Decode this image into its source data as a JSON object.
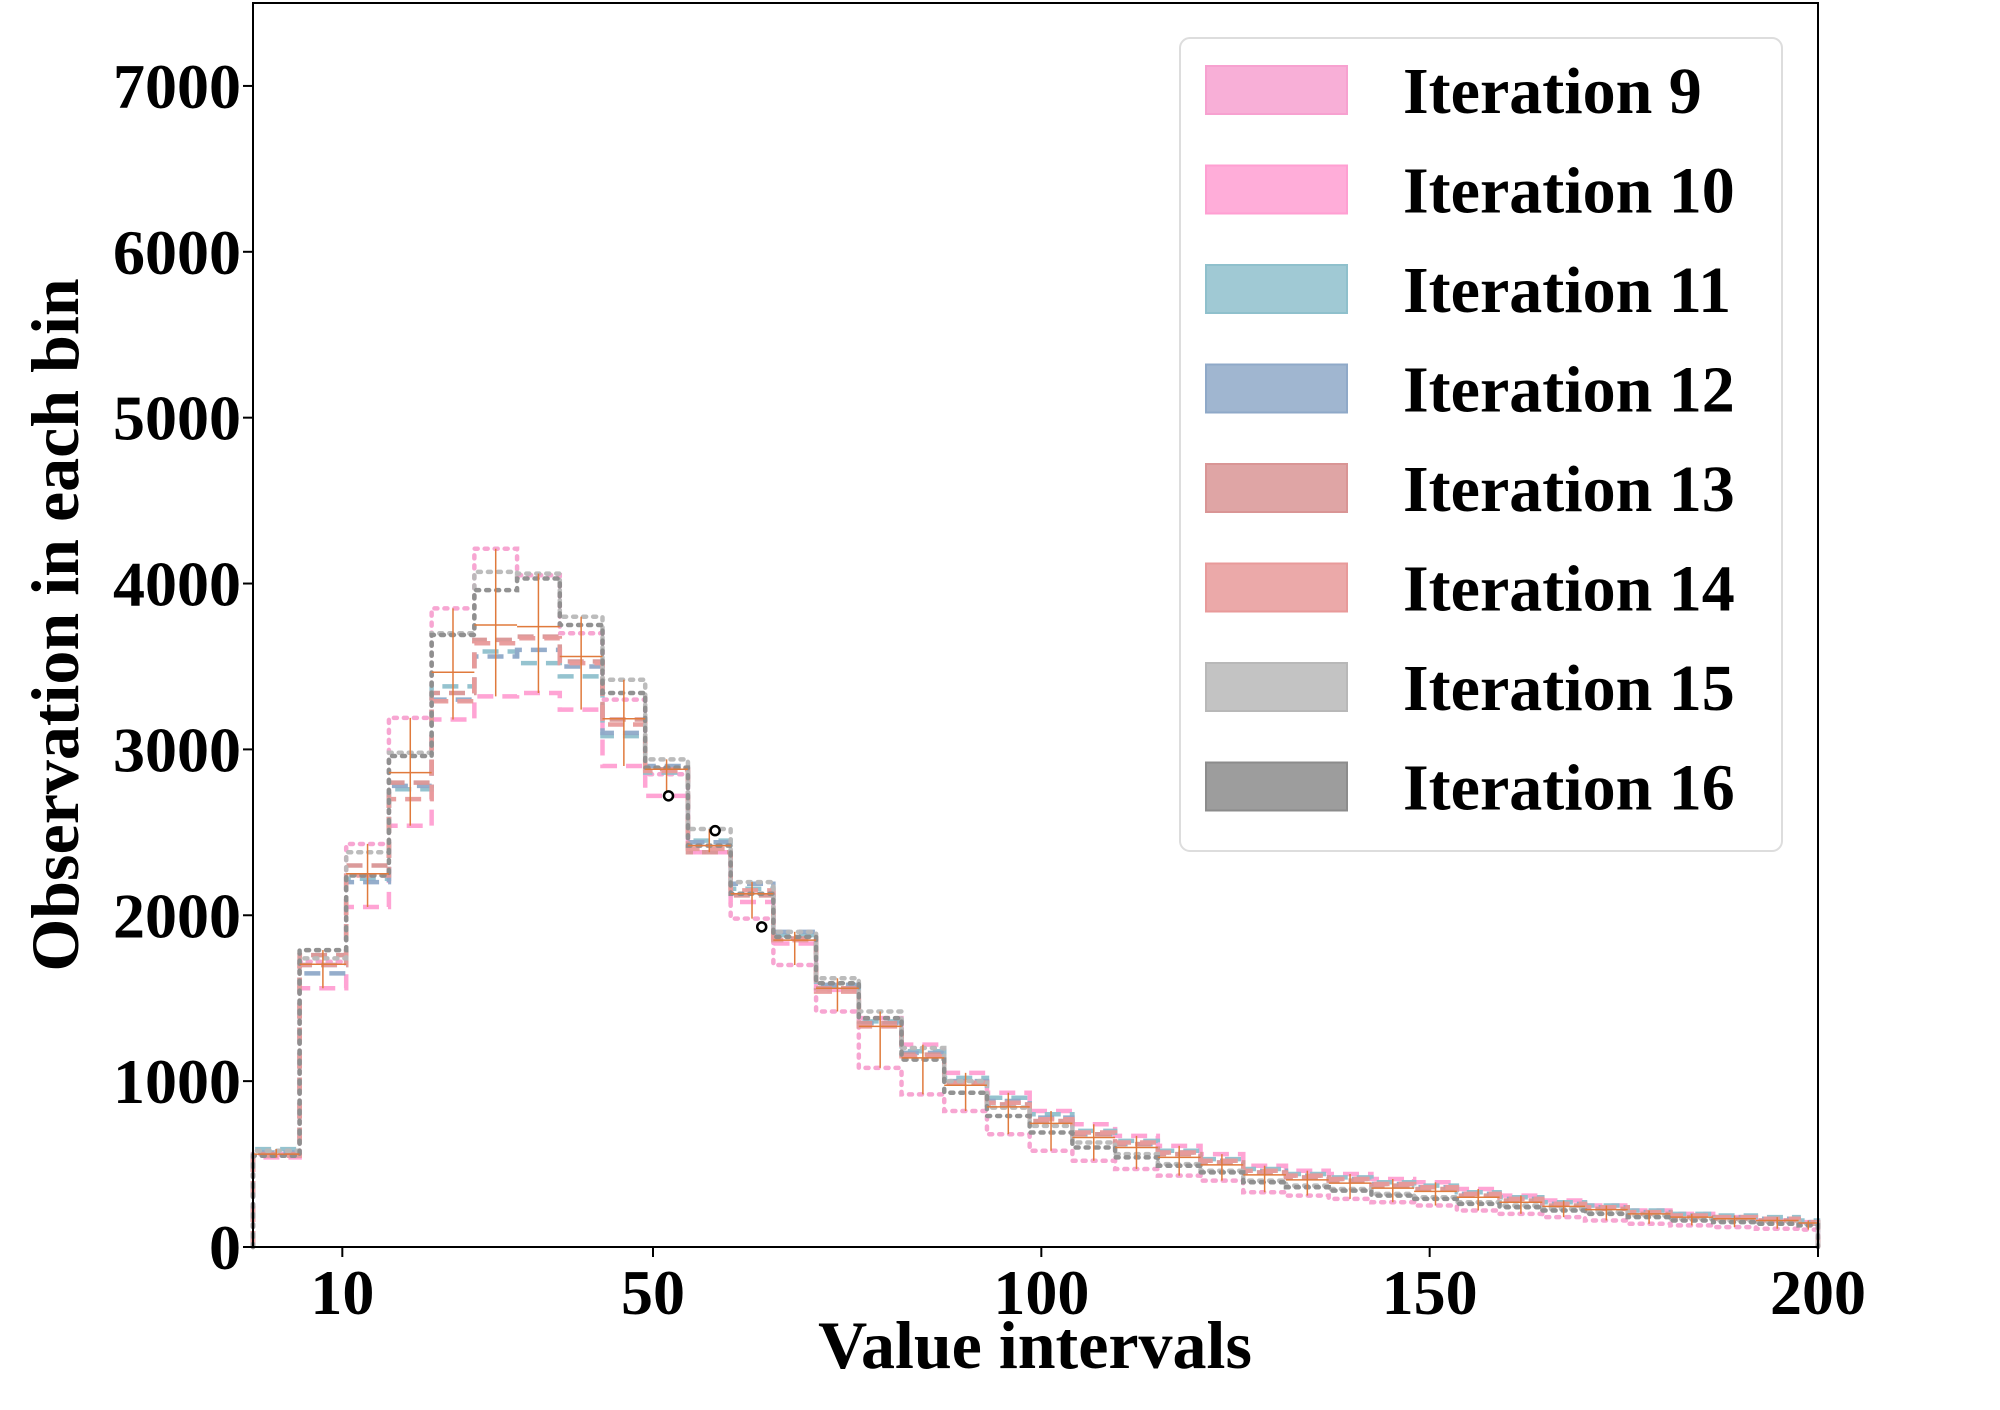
{
  "chart_data": {
    "type": "histogram-step",
    "title": "",
    "xlabel": "Value intervals",
    "ylabel": "Observation in each bin",
    "xlim": [
      -1.5,
      200
    ],
    "ylim": [
      0,
      7500
    ],
    "xticks": [
      10,
      50,
      100,
      150,
      200
    ],
    "yticks": [
      0,
      1000,
      2000,
      3000,
      4000,
      5000,
      6000,
      7000
    ],
    "legend_position": "top-right",
    "bin_edges": [
      -1.5,
      4.5,
      10.5,
      16.0,
      21.5,
      27.0,
      32.5,
      38.0,
      43.5,
      49.0,
      54.5,
      60.0,
      65.5,
      71.0,
      76.5,
      82.0,
      87.5,
      93.0,
      98.5,
      104.0,
      109.5,
      115.0,
      120.5,
      126.0,
      131.5,
      137.0,
      142.5,
      148.0,
      153.5,
      159.0,
      164.5,
      170.0,
      175.5,
      181.0,
      186.5,
      192.0,
      197.5,
      200.0
    ],
    "series": [
      {
        "name": "Iteration 9",
        "color": "#f7a1d0",
        "dash": "dotted",
        "values": [
          560,
          1720,
          2430,
          3190,
          3850,
          4210,
          4050,
          3700,
          3300,
          2850,
          2380,
          1980,
          1700,
          1420,
          1080,
          920,
          820,
          680,
          580,
          520,
          470,
          430,
          400,
          330,
          310,
          290,
          270,
          250,
          220,
          200,
          180,
          160,
          140,
          130,
          120,
          110,
          105
        ]
      },
      {
        "name": "Iteration 10",
        "color": "#ff9fd2",
        "dash": "dashed",
        "values": [
          540,
          1560,
          2050,
          2540,
          3180,
          3320,
          3340,
          3240,
          2900,
          2720,
          2380,
          2080,
          1830,
          1550,
          1380,
          1220,
          1050,
          930,
          820,
          740,
          670,
          610,
          560,
          490,
          460,
          440,
          410,
          390,
          350,
          310,
          280,
          250,
          220,
          200,
          180,
          160,
          150
        ]
      },
      {
        "name": "Iteration 11",
        "color": "#8fc0cc",
        "dash": "dashed",
        "values": [
          590,
          1700,
          2220,
          2760,
          3380,
          3590,
          3520,
          3440,
          3080,
          2860,
          2450,
          2160,
          1880,
          1570,
          1360,
          1180,
          1020,
          900,
          800,
          700,
          640,
          580,
          530,
          470,
          440,
          420,
          390,
          370,
          330,
          300,
          270,
          250,
          220,
          200,
          190,
          180,
          160
        ]
      },
      {
        "name": "Iteration 12",
        "color": "#8fa9c8",
        "dash": "dashed",
        "values": [
          570,
          1650,
          2200,
          2780,
          3300,
          3560,
          3600,
          3500,
          3100,
          2900,
          2440,
          2190,
          1900,
          1580,
          1350,
          1170,
          1000,
          880,
          780,
          680,
          620,
          570,
          520,
          460,
          430,
          410,
          380,
          360,
          320,
          290,
          260,
          240,
          210,
          190,
          180,
          170,
          150
        ]
      },
      {
        "name": "Iteration 13",
        "color": "#d99595",
        "dash": "dashed",
        "values": [
          560,
          1760,
          2300,
          2800,
          3340,
          3660,
          3680,
          3530,
          3180,
          2880,
          2380,
          2120,
          1860,
          1560,
          1350,
          1160,
          990,
          860,
          760,
          680,
          620,
          560,
          510,
          450,
          420,
          400,
          370,
          350,
          310,
          280,
          250,
          230,
          200,
          180,
          170,
          160,
          140
        ]
      },
      {
        "name": "Iteration 14",
        "color": "#e89a9a",
        "dash": "dashed",
        "values": [
          550,
          1700,
          2240,
          2700,
          3290,
          3640,
          3670,
          3520,
          3150,
          2870,
          2400,
          2150,
          1850,
          1540,
          1330,
          1150,
          990,
          870,
          770,
          690,
          630,
          570,
          520,
          460,
          430,
          410,
          380,
          360,
          320,
          290,
          260,
          240,
          210,
          190,
          180,
          170,
          150
        ]
      },
      {
        "name": "Iteration 15",
        "color": "#b8b8b8",
        "dash": "dotted",
        "values": [
          580,
          1740,
          2380,
          2980,
          3700,
          4070,
          4060,
          3800,
          3420,
          2940,
          2520,
          2200,
          1900,
          1620,
          1420,
          1200,
          1000,
          840,
          730,
          630,
          560,
          500,
          460,
          400,
          370,
          350,
          320,
          300,
          270,
          250,
          230,
          210,
          190,
          170,
          160,
          150,
          140
        ]
      },
      {
        "name": "Iteration 16",
        "color": "#8c8c8c",
        "dash": "dotted",
        "values": [
          550,
          1790,
          2240,
          2960,
          3690,
          3960,
          4030,
          3750,
          3340,
          2890,
          2420,
          2130,
          1870,
          1590,
          1380,
          1130,
          930,
          790,
          690,
          600,
          540,
          490,
          450,
          390,
          360,
          340,
          310,
          290,
          260,
          240,
          220,
          200,
          180,
          160,
          150,
          140,
          130
        ]
      }
    ],
    "mean_line": {
      "color": "#e07a3c",
      "values": [
        560,
        1705,
        2250,
        2860,
        3465,
        3750,
        3740,
        3560,
        3185,
        2880,
        2420,
        2130,
        1850,
        1560,
        1330,
        1140,
        975,
        845,
        745,
        660,
        600,
        540,
        495,
        435,
        405,
        385,
        355,
        335,
        300,
        270,
        245,
        225,
        200,
        180,
        170,
        160,
        145
      ]
    },
    "markers": [
      {
        "x": 52.0,
        "y": 2720
      },
      {
        "x": 58.0,
        "y": 2510
      },
      {
        "x": 64.0,
        "y": 1930
      }
    ]
  }
}
